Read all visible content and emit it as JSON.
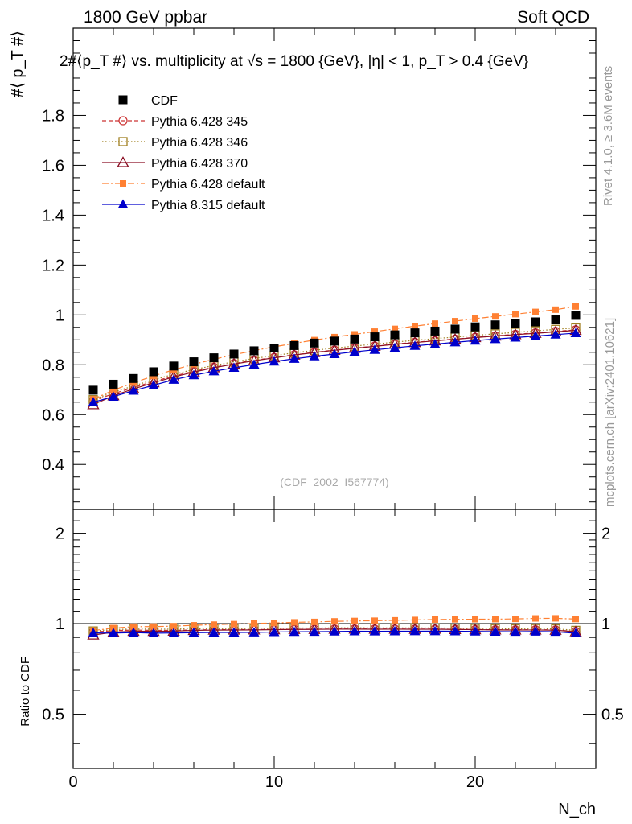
{
  "header": {
    "left": "1800 GeV ppbar",
    "right": "Soft QCD"
  },
  "title": "2#⟨p_T #⟩ vs. multiplicity at √s = 1800 {GeV}, |η| < 1, p_T > 0.4 {GeV}",
  "watermark": "(CDF_2002_I567774)",
  "side_text": {
    "rivet": "Rivet 4.1.0, ≥ 3.6M events",
    "mcplots": "mcplots.cern.ch [arXiv:2401.10621]"
  },
  "colors": {
    "cdf": "#000000",
    "p345": "#cc3333",
    "p346": "#a08020",
    "p370": "#8b0f24",
    "p6def": "#ff8033",
    "p8def": "#0000cc"
  },
  "chart_data": {
    "type": "scatter",
    "title": "#⟨p_T #⟩ vs. multiplicity",
    "xlabel": "N_ch",
    "ylabel": "#⟨ p_T #⟩",
    "ratio_ylabel": "Ratio to CDF",
    "xlim": [
      0,
      26
    ],
    "ylim": [
      0.22,
      2.15
    ],
    "ratio_ylim": [
      0.33,
      2.4
    ],
    "x_ticks": [
      "0",
      "10",
      "20"
    ],
    "y_ticks": [
      "0.4",
      "0.6",
      "0.8",
      "1",
      "1.2",
      "1.4",
      "1.6",
      "1.8"
    ],
    "ratio_ticks": [
      "0.5",
      "1",
      "2"
    ],
    "ratio_ticks_right": [
      "0.5",
      "1",
      "2"
    ],
    "x": [
      1,
      2,
      3,
      4,
      5,
      6,
      7,
      8,
      9,
      10,
      11,
      12,
      13,
      14,
      15,
      16,
      17,
      18,
      19,
      20,
      21,
      22,
      23,
      24,
      25
    ],
    "series": [
      {
        "name": "CDF",
        "key": "cdf",
        "marker": "square",
        "line": "none",
        "values": [
          0.698,
          0.722,
          0.745,
          0.772,
          0.795,
          0.812,
          0.828,
          0.843,
          0.856,
          0.867,
          0.877,
          0.887,
          0.895,
          0.903,
          0.912,
          0.92,
          0.928,
          0.935,
          0.943,
          0.952,
          0.96,
          0.967,
          0.972,
          0.98,
          0.998
        ]
      },
      {
        "name": "Pythia 6.428 345",
        "key": "p345",
        "marker": "circle-open",
        "line": "dashed",
        "values": [
          0.655,
          0.684,
          0.709,
          0.733,
          0.755,
          0.774,
          0.79,
          0.805,
          0.818,
          0.829,
          0.84,
          0.85,
          0.859,
          0.867,
          0.875,
          0.883,
          0.89,
          0.897,
          0.903,
          0.91,
          0.916,
          0.922,
          0.928,
          0.934,
          0.94
        ]
      },
      {
        "name": "Pythia 6.428 346",
        "key": "p346",
        "marker": "square-open",
        "line": "dotted",
        "values": [
          0.66,
          0.69,
          0.715,
          0.74,
          0.762,
          0.781,
          0.797,
          0.812,
          0.825,
          0.837,
          0.848,
          0.858,
          0.867,
          0.875,
          0.883,
          0.891,
          0.898,
          0.905,
          0.911,
          0.918,
          0.924,
          0.93,
          0.936,
          0.942,
          0.948
        ]
      },
      {
        "name": "Pythia 6.428 370",
        "key": "p370",
        "marker": "triangle-open",
        "line": "solid",
        "values": [
          0.64,
          0.676,
          0.703,
          0.728,
          0.751,
          0.771,
          0.788,
          0.803,
          0.816,
          0.828,
          0.839,
          0.849,
          0.858,
          0.866,
          0.874,
          0.882,
          0.889,
          0.896,
          0.902,
          0.909,
          0.915,
          0.921,
          0.926,
          0.932,
          0.938
        ]
      },
      {
        "name": "Pythia 6.428 default",
        "key": "p6def",
        "marker": "square-small",
        "line": "dashdot",
        "values": [
          0.662,
          0.698,
          0.728,
          0.755,
          0.78,
          0.802,
          0.822,
          0.84,
          0.857,
          0.872,
          0.886,
          0.899,
          0.911,
          0.922,
          0.933,
          0.944,
          0.955,
          0.965,
          0.975,
          0.985,
          0.994,
          1.003,
          1.012,
          1.021,
          1.034
        ]
      },
      {
        "name": "Pythia 8.315 default",
        "key": "p8def",
        "marker": "triangle",
        "line": "solid",
        "values": [
          0.65,
          0.672,
          0.696,
          0.718,
          0.74,
          0.758,
          0.774,
          0.788,
          0.801,
          0.813,
          0.824,
          0.834,
          0.843,
          0.852,
          0.86,
          0.868,
          0.876,
          0.883,
          0.89,
          0.897,
          0.903,
          0.909,
          0.915,
          0.921,
          0.927
        ]
      }
    ]
  }
}
